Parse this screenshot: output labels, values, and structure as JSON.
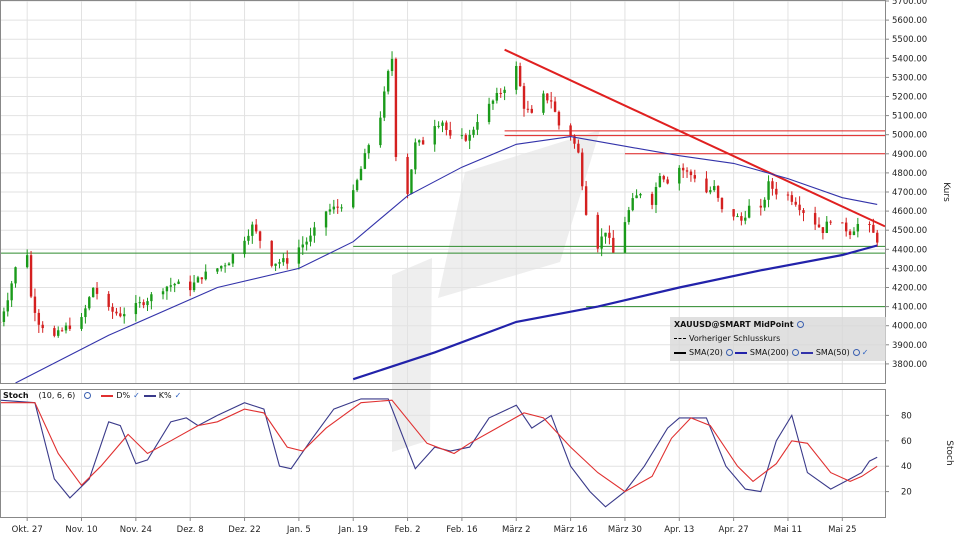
{
  "chart_data": [
    {
      "type": "candlestick",
      "title": "",
      "ylabel": "Kurs",
      "ylim": [
        3700,
        5700
      ],
      "yticks": [
        3800,
        3900,
        4000,
        4100,
        4200,
        4300,
        4400,
        4500,
        4600,
        4700,
        4800,
        4900,
        5000,
        5100,
        5200,
        5300,
        5400,
        5500,
        5600,
        5700
      ],
      "ytick_labels": [
        "3800.00",
        "3900.00",
        "4000.00",
        "4100.00",
        "4200.00",
        "4300.00",
        "4400.00",
        "4500.00",
        "4600.00",
        "4700.00",
        "4800.00",
        "4900.00",
        "5000.00",
        "5100.00",
        "5200.00",
        "5300.00",
        "5400.00",
        "5500.00",
        "5600.00",
        "5700.00"
      ],
      "x_start": "2025-10-20",
      "x_end": "2026-06-05",
      "xticks": [
        "2025-10-27",
        "2025-11-10",
        "2025-11-24",
        "2025-12-08",
        "2025-12-22",
        "2026-01-05",
        "2026-01-19",
        "2026-02-02",
        "2026-02-16",
        "2026-03-02",
        "2026-03-16",
        "2026-03-30",
        "2026-04-13",
        "2026-04-27",
        "2026-05-11",
        "2026-05-25"
      ],
      "xtick_labels": [
        "Okt. 27",
        "Nov. 10",
        "Nov. 24",
        "Dez. 8",
        "Dez. 22",
        "Jan. 5",
        "Jan. 19",
        "Feb. 2",
        "Feb. 16",
        "März 2",
        "März 16",
        "März 30",
        "Apr. 13",
        "Apr. 27",
        "Mai 11",
        "Mai 25"
      ],
      "grid": true,
      "up_color": "#1a9a1a",
      "down_color": "#d42020",
      "legend": {
        "placement": "bottom-right",
        "title": "XAUUSD@SMART MidPoint",
        "previous_close": "Vorheriger Schlusskurs",
        "entries": [
          "SMA(20)",
          "SMA(200)",
          "SMA(50)"
        ]
      },
      "series": [
        {
          "name": "XAUUSD@SMART MidPoint",
          "type": "ohlc",
          "anchors": [
            [
              "2025-10-20",
              4020
            ],
            [
              "2025-10-22",
              4150
            ],
            [
              "2025-10-24",
              4300
            ],
            [
              "2025-10-27",
              4380
            ],
            [
              "2025-10-28",
              4150
            ],
            [
              "2025-10-30",
              4020
            ],
            [
              "2025-11-03",
              3940
            ],
            [
              "2025-11-06",
              3990
            ],
            [
              "2025-11-10",
              4030
            ],
            [
              "2025-11-13",
              4200
            ],
            [
              "2025-11-17",
              4080
            ],
            [
              "2025-11-20",
              4060
            ],
            [
              "2025-11-24",
              4100
            ],
            [
              "2025-11-27",
              4140
            ],
            [
              "2025-12-01",
              4200
            ],
            [
              "2025-12-04",
              4220
            ],
            [
              "2025-12-08",
              4200
            ],
            [
              "2025-12-11",
              4260
            ],
            [
              "2025-12-15",
              4300
            ],
            [
              "2025-12-18",
              4340
            ],
            [
              "2025-12-22",
              4460
            ],
            [
              "2025-12-24",
              4520
            ],
            [
              "2025-12-26",
              4450
            ],
            [
              "2025-12-29",
              4330
            ],
            [
              "2026-01-02",
              4340
            ],
            [
              "2026-01-05",
              4410
            ],
            [
              "2026-01-08",
              4460
            ],
            [
              "2026-01-12",
              4600
            ],
            [
              "2026-01-15",
              4620
            ],
            [
              "2026-01-19",
              4690
            ],
            [
              "2026-01-21",
              4820
            ],
            [
              "2026-01-23",
              4950
            ],
            [
              "2026-01-26",
              5100
            ],
            [
              "2026-01-28",
              5320
            ],
            [
              "2026-01-29",
              5400
            ],
            [
              "2026-01-30",
              4900
            ],
            [
              "2026-02-02",
              4700
            ],
            [
              "2026-02-04",
              4950
            ],
            [
              "2026-02-06",
              4960
            ],
            [
              "2026-02-09",
              5060
            ],
            [
              "2026-02-11",
              5070
            ],
            [
              "2026-02-13",
              4980
            ],
            [
              "2026-02-16",
              4980
            ],
            [
              "2026-02-18",
              4990
            ],
            [
              "2026-02-20",
              5080
            ],
            [
              "2026-02-23",
              5150
            ],
            [
              "2026-02-25",
              5200
            ],
            [
              "2026-02-27",
              5250
            ],
            [
              "2026-03-02",
              5350
            ],
            [
              "2026-03-04",
              5150
            ],
            [
              "2026-03-06",
              5100
            ],
            [
              "2026-03-09",
              5200
            ],
            [
              "2026-03-11",
              5180
            ],
            [
              "2026-03-13",
              5050
            ],
            [
              "2026-03-16",
              5000
            ],
            [
              "2026-03-18",
              4900
            ],
            [
              "2026-03-20",
              4600
            ],
            [
              "2026-03-23",
              4420
            ],
            [
              "2026-03-25",
              4500
            ],
            [
              "2026-03-27",
              4380
            ],
            [
              "2026-03-30",
              4550
            ],
            [
              "2026-04-01",
              4650
            ],
            [
              "2026-04-03",
              4700
            ],
            [
              "2026-04-06",
              4650
            ],
            [
              "2026-04-08",
              4800
            ],
            [
              "2026-04-10",
              4760
            ],
            [
              "2026-04-13",
              4830
            ],
            [
              "2026-04-15",
              4800
            ],
            [
              "2026-04-17",
              4780
            ],
            [
              "2026-04-20",
              4700
            ],
            [
              "2026-04-22",
              4720
            ],
            [
              "2026-04-24",
              4600
            ],
            [
              "2026-04-27",
              4580
            ],
            [
              "2026-04-29",
              4550
            ],
            [
              "2026-05-01",
              4620
            ],
            [
              "2026-05-04",
              4600
            ],
            [
              "2026-05-06",
              4740
            ],
            [
              "2026-05-08",
              4700
            ],
            [
              "2026-05-11",
              4680
            ],
            [
              "2026-05-13",
              4650
            ],
            [
              "2026-05-15",
              4600
            ],
            [
              "2026-05-18",
              4540
            ],
            [
              "2026-05-20",
              4500
            ],
            [
              "2026-05-22",
              4560
            ],
            [
              "2026-05-25",
              4520
            ],
            [
              "2026-05-27",
              4490
            ],
            [
              "2026-05-29",
              4530
            ],
            [
              "2026-06-01",
              4510
            ],
            [
              "2026-06-03",
              4450
            ]
          ]
        },
        {
          "name": "SMA(50)",
          "type": "line",
          "color": "#3333aa",
          "points": [
            [
              "2025-10-24",
              3700
            ],
            [
              "2025-11-17",
              3950
            ],
            [
              "2025-12-15",
              4200
            ],
            [
              "2026-01-05",
              4300
            ],
            [
              "2026-01-19",
              4440
            ],
            [
              "2026-02-02",
              4680
            ],
            [
              "2026-02-16",
              4830
            ],
            [
              "2026-03-02",
              4950
            ],
            [
              "2026-03-16",
              4990
            ],
            [
              "2026-03-30",
              4940
            ],
            [
              "2026-04-13",
              4890
            ],
            [
              "2026-04-27",
              4850
            ],
            [
              "2026-05-11",
              4770
            ],
            [
              "2026-05-25",
              4670
            ],
            [
              "2026-06-03",
              4635
            ]
          ]
        },
        {
          "name": "SMA(200)",
          "type": "line",
          "color": "#2222aa",
          "points": [
            [
              "2026-01-19",
              3720
            ],
            [
              "2026-02-09",
              3860
            ],
            [
              "2026-03-02",
              4020
            ],
            [
              "2026-03-23",
              4100
            ],
            [
              "2026-04-13",
              4200
            ],
            [
              "2026-05-04",
              4290
            ],
            [
              "2026-05-25",
              4370
            ],
            [
              "2026-06-03",
              4420
            ]
          ]
        }
      ],
      "annotations": [
        {
          "type": "trendline",
          "color": "#e02020",
          "from": [
            "2026-02-27",
            5445
          ],
          "to": [
            "2026-06-05",
            4520
          ]
        },
        {
          "type": "hline",
          "color": "#e02020",
          "value": 5020,
          "from": "2026-02-27",
          "to": "2026-06-05"
        },
        {
          "type": "hline",
          "color": "#e02020",
          "value": 4995,
          "from": "2026-02-27",
          "to": "2026-06-05"
        },
        {
          "type": "hline",
          "color": "#e02020",
          "value": 4900,
          "from": "2026-03-30",
          "to": "2026-06-05"
        },
        {
          "type": "hline",
          "color": "#2e8b2e",
          "value": 4380,
          "from": "2025-10-20",
          "to": "2026-06-05"
        },
        {
          "type": "hline",
          "color": "#2e8b2e",
          "value": 4415,
          "from": "2026-01-19",
          "to": "2026-06-05"
        },
        {
          "type": "hline",
          "color": "#2e8b2e",
          "value": 4100,
          "from": "2026-03-20",
          "to": "2026-06-05"
        }
      ]
    },
    {
      "type": "line",
      "title": "",
      "ylabel": "Stoch",
      "ylim": [
        0,
        100
      ],
      "yticks": [
        20,
        40,
        60,
        80
      ],
      "ytick_labels": [
        "20",
        "40",
        "60",
        "80"
      ],
      "header": {
        "name": "Stoch",
        "params": "(10, 6, 6)",
        "d_label": "D%",
        "k_label": "K%"
      },
      "series": [
        {
          "name": "K%",
          "color": "#3a3a8a",
          "points": [
            [
              "2025-10-20",
              92
            ],
            [
              "2025-10-29",
              90
            ],
            [
              "2025-11-03",
              30
            ],
            [
              "2025-11-07",
              15
            ],
            [
              "2025-11-12",
              30
            ],
            [
              "2025-11-17",
              75
            ],
            [
              "2025-11-20",
              72
            ],
            [
              "2025-11-24",
              42
            ],
            [
              "2025-11-27",
              45
            ],
            [
              "2025-12-03",
              75
            ],
            [
              "2025-12-07",
              78
            ],
            [
              "2025-12-10",
              72
            ],
            [
              "2025-12-15",
              80
            ],
            [
              "2025-12-22",
              90
            ],
            [
              "2025-12-27",
              85
            ],
            [
              "2025-12-31",
              40
            ],
            [
              "2026-01-03",
              38
            ],
            [
              "2026-01-08",
              60
            ],
            [
              "2026-01-14",
              85
            ],
            [
              "2026-01-21",
              93
            ],
            [
              "2026-01-28",
              93
            ],
            [
              "2026-02-04",
              38
            ],
            [
              "2026-02-09",
              55
            ],
            [
              "2026-02-13",
              52
            ],
            [
              "2026-02-18",
              55
            ],
            [
              "2026-02-23",
              78
            ],
            [
              "2026-03-02",
              88
            ],
            [
              "2026-03-06",
              70
            ],
            [
              "2026-03-11",
              80
            ],
            [
              "2026-03-16",
              40
            ],
            [
              "2026-03-21",
              20
            ],
            [
              "2026-03-25",
              8
            ],
            [
              "2026-03-30",
              20
            ],
            [
              "2026-04-04",
              40
            ],
            [
              "2026-04-10",
              70
            ],
            [
              "2026-04-13",
              78
            ],
            [
              "2026-04-20",
              78
            ],
            [
              "2026-04-25",
              40
            ],
            [
              "2026-04-30",
              22
            ],
            [
              "2026-05-04",
              20
            ],
            [
              "2026-05-08",
              60
            ],
            [
              "2026-05-12",
              80
            ],
            [
              "2026-05-16",
              35
            ],
            [
              "2026-05-22",
              22
            ],
            [
              "2026-05-27",
              30
            ],
            [
              "2026-05-30",
              35
            ],
            [
              "2026-06-01",
              44
            ],
            [
              "2026-06-03",
              47
            ]
          ]
        },
        {
          "name": "D%",
          "color": "#e03030",
          "points": [
            [
              "2025-10-20",
              90
            ],
            [
              "2025-10-29",
              90
            ],
            [
              "2025-11-04",
              50
            ],
            [
              "2025-11-10",
              25
            ],
            [
              "2025-11-15",
              40
            ],
            [
              "2025-11-22",
              65
            ],
            [
              "2025-11-27",
              50
            ],
            [
              "2025-12-03",
              60
            ],
            [
              "2025-12-10",
              72
            ],
            [
              "2025-12-15",
              75
            ],
            [
              "2025-12-22",
              85
            ],
            [
              "2025-12-27",
              82
            ],
            [
              "2026-01-02",
              55
            ],
            [
              "2026-01-06",
              52
            ],
            [
              "2026-01-12",
              70
            ],
            [
              "2026-01-21",
              90
            ],
            [
              "2026-01-29",
              92
            ],
            [
              "2026-02-07",
              58
            ],
            [
              "2026-02-14",
              50
            ],
            [
              "2026-02-18",
              58
            ],
            [
              "2026-02-25",
              70
            ],
            [
              "2026-03-04",
              82
            ],
            [
              "2026-03-09",
              78
            ],
            [
              "2026-03-16",
              55
            ],
            [
              "2026-03-23",
              35
            ],
            [
              "2026-03-30",
              20
            ],
            [
              "2026-04-06",
              32
            ],
            [
              "2026-04-11",
              62
            ],
            [
              "2026-04-16",
              78
            ],
            [
              "2026-04-21",
              72
            ],
            [
              "2026-04-28",
              40
            ],
            [
              "2026-05-02",
              28
            ],
            [
              "2026-05-08",
              42
            ],
            [
              "2026-05-12",
              60
            ],
            [
              "2026-05-16",
              58
            ],
            [
              "2026-05-22",
              35
            ],
            [
              "2026-05-27",
              28
            ],
            [
              "2026-05-30",
              32
            ],
            [
              "2026-06-03",
              40
            ]
          ]
        }
      ]
    }
  ]
}
